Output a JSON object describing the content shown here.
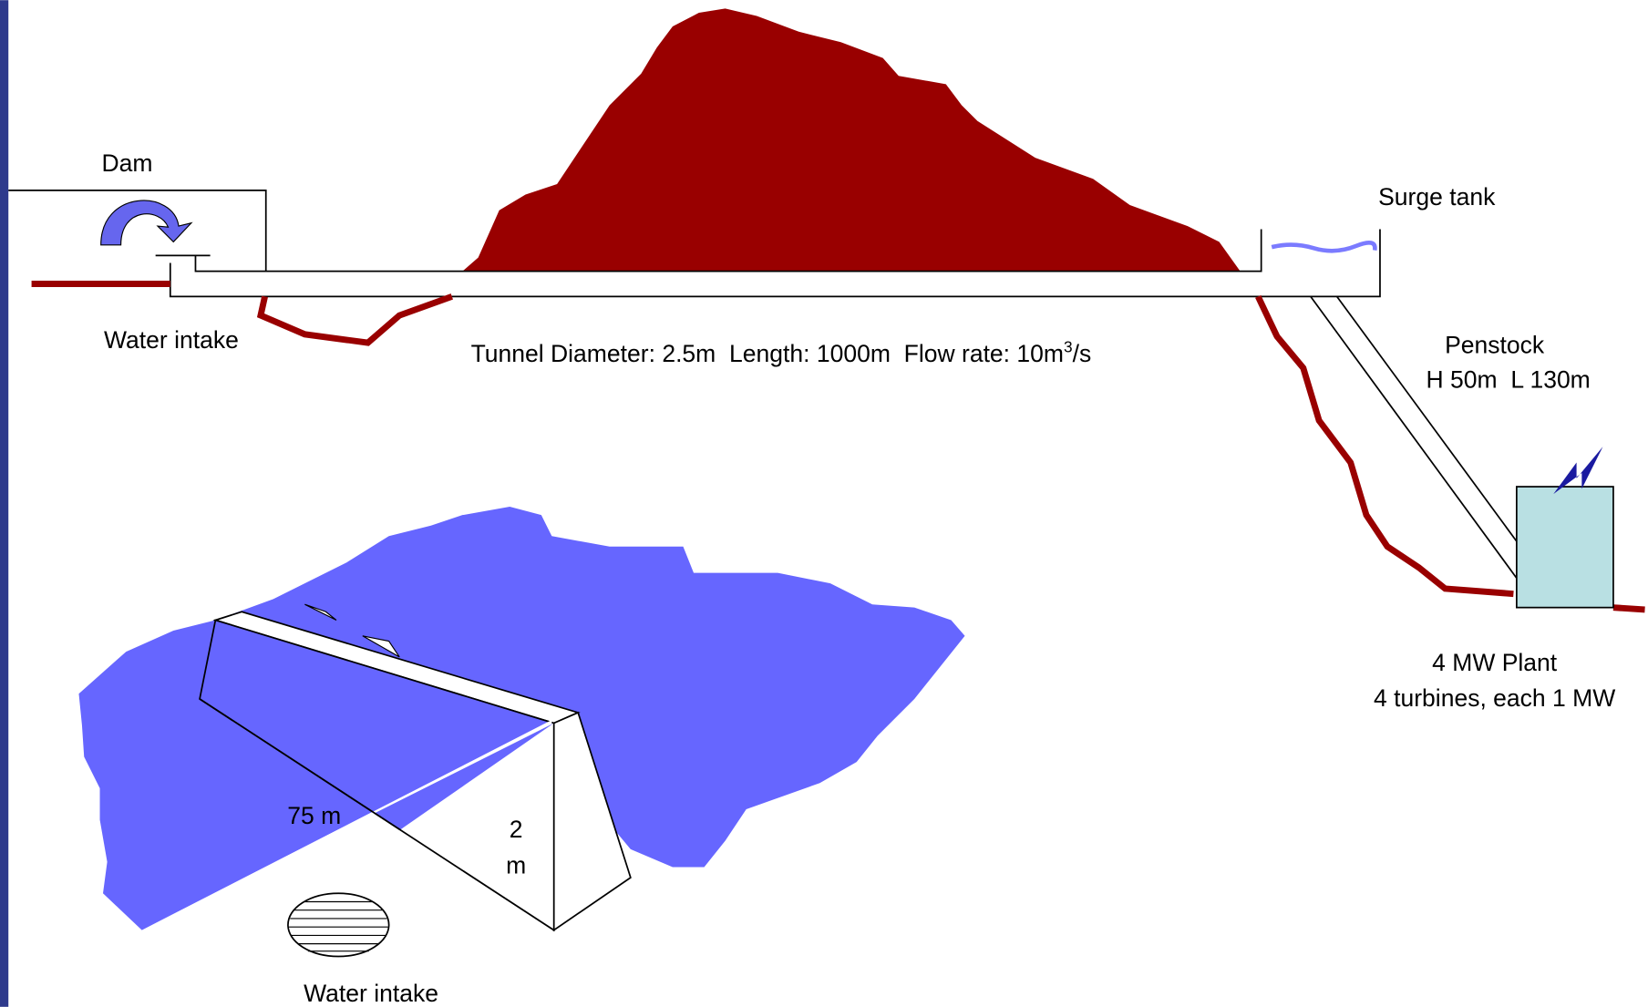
{
  "labels": {
    "dam": "Dam",
    "water_intake_top": "Water intake",
    "surge_tank": "Surge tank",
    "tunnel": {
      "text": "Tunnel Diameter: 2.5m  Length: 1000m  Flow rate: 10m",
      "superscript": "3",
      "suffix": "/s"
    },
    "penstock": {
      "title": "Penstock",
      "detail": "H 50m  L 130m"
    },
    "plant": {
      "title": "4 MW Plant",
      "detail": "4 turbines, each 1 MW"
    },
    "weir": {
      "length": "75 m",
      "height_value": "2",
      "height_unit": "m"
    },
    "water_intake_bottom": "Water intake"
  }
}
